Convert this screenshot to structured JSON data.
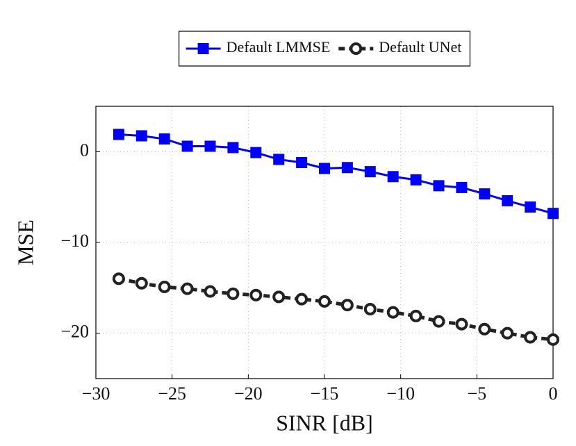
{
  "chart_data": {
    "type": "line",
    "x_label": "SINR [dB]",
    "y_label": "MSE",
    "x": [
      -28.5,
      -27,
      -25.5,
      -24,
      -22.5,
      -21,
      -19.5,
      -18,
      -16.5,
      -15,
      -13.5,
      -12,
      -10.5,
      -9,
      -7.5,
      -6,
      -4.5,
      -3,
      -1.5,
      0
    ],
    "series": [
      {
        "name": "Default LMMSE",
        "color": "#0000ff",
        "marker": "square",
        "line_style": "solid",
        "values": [
          1.9,
          1.75,
          1.4,
          0.6,
          0.6,
          0.45,
          -0.1,
          -0.85,
          -1.2,
          -1.85,
          -1.75,
          -2.2,
          -2.75,
          -3.1,
          -3.75,
          -3.95,
          -4.65,
          -5.4,
          -6.1,
          -6.8
        ]
      },
      {
        "name": "Default UNet",
        "color": "#222222",
        "marker": "circle",
        "line_style": "dashed",
        "values": [
          -14.0,
          -14.5,
          -14.9,
          -15.1,
          -15.4,
          -15.65,
          -15.8,
          -16.0,
          -16.25,
          -16.5,
          -16.9,
          -17.35,
          -17.7,
          -18.1,
          -18.7,
          -19.0,
          -19.55,
          -20.0,
          -20.45,
          -20.7
        ]
      }
    ],
    "xlim": [
      -30,
      0
    ],
    "ylim": [
      -25,
      5
    ],
    "xticks": [
      {
        "value": -30,
        "label": "−30"
      },
      {
        "value": -25,
        "label": "−25"
      },
      {
        "value": -20,
        "label": "−20"
      },
      {
        "value": -15,
        "label": "−15"
      },
      {
        "value": -10,
        "label": "−10"
      },
      {
        "value": -5,
        "label": "−5"
      },
      0
    ],
    "yticks": [
      {
        "value": -20,
        "label": "−20"
      },
      {
        "value": -10,
        "label": "−10"
      },
      0
    ],
    "grid": true,
    "legend": "top"
  }
}
